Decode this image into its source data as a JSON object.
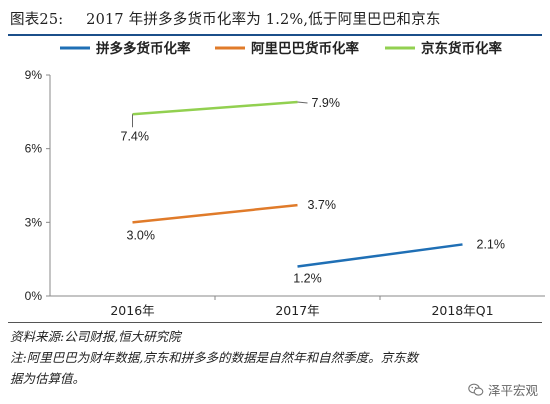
{
  "figure": {
    "label": "图表25:",
    "title": "2017 年拼多多货币化率为 1.2%,低于阿里巴巴和京东"
  },
  "chart_data": {
    "type": "line",
    "categories": [
      "2016年",
      "2017年",
      "2018年Q1"
    ],
    "yticks": [
      "0%",
      "3%",
      "6%",
      "9%"
    ],
    "ylim": [
      0,
      9
    ],
    "grid": false,
    "legend_position": "top",
    "series": [
      {
        "name": "拼多多货币化率",
        "color": "#1f6fb5",
        "x": [
          "2017年",
          "2018年Q1"
        ],
        "values": [
          1.2,
          2.1
        ],
        "labels": [
          "1.2%",
          "2.1%"
        ]
      },
      {
        "name": "阿里巴巴货币化率",
        "color": "#e07b2a",
        "x": [
          "2016年",
          "2017年"
        ],
        "values": [
          3.0,
          3.7
        ],
        "labels": [
          "3.0%",
          "3.7%"
        ]
      },
      {
        "name": "京东货币化率",
        "color": "#92d050",
        "x": [
          "2016年",
          "2017年"
        ],
        "values": [
          7.4,
          7.9
        ],
        "labels": [
          "7.4%",
          "7.9%"
        ]
      }
    ]
  },
  "notes": {
    "source": "资料来源:公司财报,恒大研究院",
    "note": "注:阿里巴巴为财年数据,京东和拼多多的数据是自然年和自然季度。京东数",
    "note_cont": "据为估算值。"
  },
  "watermark": {
    "text": "泽平宏观",
    "icon": "wechat-icon"
  }
}
